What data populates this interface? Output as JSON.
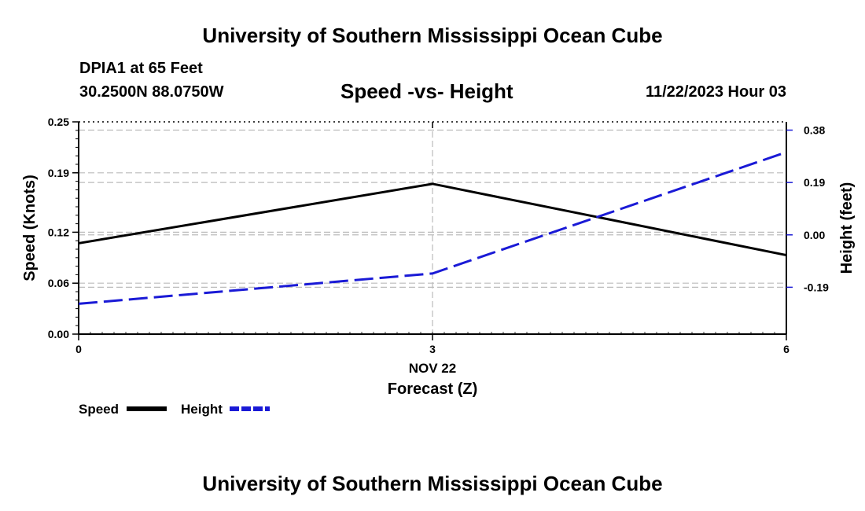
{
  "header": {
    "org_title": "University of Southern Mississippi Ocean Cube",
    "station": "DPIA1 at 65 Feet",
    "coords": "30.2500N  88.0750W",
    "valid_time": "11/22/2023 Hour 03",
    "footer_title": "University of Southern Mississippi Ocean Cube"
  },
  "chart_data": {
    "type": "line",
    "title": "Speed -vs- Height",
    "xlabel": "Forecast (Z)",
    "date_label": "NOV 22",
    "x": [
      0,
      3,
      6
    ],
    "x_ticks": [
      "0",
      "3",
      "6"
    ],
    "left_axis": {
      "label": "Speed (Knots)",
      "ylim": [
        0,
        0.25
      ],
      "ticks": [
        0.0,
        0.06,
        0.12,
        0.19,
        0.25
      ],
      "tick_labels": [
        "0.00",
        "0.06",
        "0.12",
        "0.19",
        "0.25"
      ]
    },
    "right_axis": {
      "label": "Height (feet)",
      "ylim": [
        -0.36,
        0.41
      ],
      "ticks": [
        -0.19,
        0.0,
        0.19,
        0.38
      ],
      "tick_labels": [
        "-0.19",
        "0.00",
        "0.19",
        "0.38"
      ]
    },
    "series": [
      {
        "name": "Speed",
        "axis": "left",
        "values": [
          0.107,
          0.177,
          0.093
        ],
        "color": "#000000",
        "style": "solid"
      },
      {
        "name": "Height",
        "axis": "right",
        "values": [
          -0.25,
          -0.14,
          0.3
        ],
        "color": "#1a1ad6",
        "style": "dashed"
      }
    ],
    "gridlines": true,
    "legend": {
      "position": "bottom-left",
      "labels": [
        "Speed",
        "Height"
      ]
    }
  }
}
